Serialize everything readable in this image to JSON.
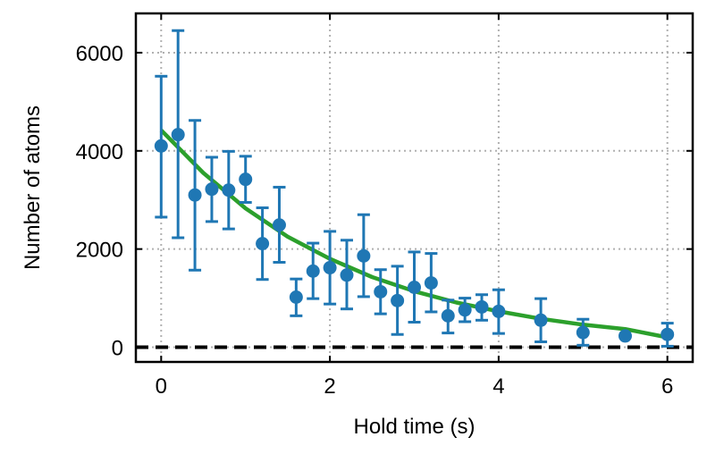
{
  "chart_data": {
    "type": "scatter",
    "title": "",
    "xlabel": "Hold time (s)",
    "ylabel": "Number of atoms",
    "xlim": [
      -0.3,
      6.3
    ],
    "ylim": [
      -300,
      6800
    ],
    "xticks": [
      0,
      2,
      4,
      6
    ],
    "yticks": [
      0,
      2000,
      4000,
      6000
    ],
    "grid": true,
    "reference_line": {
      "y": 0,
      "style": "dashed",
      "color": "#000000"
    },
    "series": [
      {
        "kind": "errorbar",
        "color": "#1f77b4",
        "points": [
          {
            "x": 0.0,
            "y": 4100,
            "lo": 2650,
            "hi": 5520
          },
          {
            "x": 0.2,
            "y": 4330,
            "lo": 2230,
            "hi": 6450
          },
          {
            "x": 0.4,
            "y": 3100,
            "lo": 1570,
            "hi": 4620
          },
          {
            "x": 0.6,
            "y": 3220,
            "lo": 2560,
            "hi": 3870
          },
          {
            "x": 0.8,
            "y": 3200,
            "lo": 2410,
            "hi": 3990
          },
          {
            "x": 1.0,
            "y": 3420,
            "lo": 2950,
            "hi": 3890
          },
          {
            "x": 1.2,
            "y": 2110,
            "lo": 1380,
            "hi": 2840
          },
          {
            "x": 1.4,
            "y": 2490,
            "lo": 1730,
            "hi": 3260
          },
          {
            "x": 1.6,
            "y": 1020,
            "lo": 640,
            "hi": 1390
          },
          {
            "x": 1.8,
            "y": 1550,
            "lo": 990,
            "hi": 2120
          },
          {
            "x": 2.0,
            "y": 1620,
            "lo": 880,
            "hi": 2360
          },
          {
            "x": 2.2,
            "y": 1470,
            "lo": 780,
            "hi": 2180
          },
          {
            "x": 2.4,
            "y": 1860,
            "lo": 1030,
            "hi": 2700
          },
          {
            "x": 2.6,
            "y": 1130,
            "lo": 680,
            "hi": 1580
          },
          {
            "x": 2.8,
            "y": 950,
            "lo": 260,
            "hi": 1650
          },
          {
            "x": 3.0,
            "y": 1220,
            "lo": 510,
            "hi": 1940
          },
          {
            "x": 3.2,
            "y": 1310,
            "lo": 720,
            "hi": 1910
          },
          {
            "x": 3.4,
            "y": 640,
            "lo": 290,
            "hi": 960
          },
          {
            "x": 3.6,
            "y": 760,
            "lo": 520,
            "hi": 1000
          },
          {
            "x": 3.8,
            "y": 820,
            "lo": 550,
            "hi": 1070
          },
          {
            "x": 4.0,
            "y": 730,
            "lo": 280,
            "hi": 1170
          },
          {
            "x": 4.5,
            "y": 550,
            "lo": 110,
            "hi": 990
          },
          {
            "x": 5.0,
            "y": 300,
            "lo": 40,
            "hi": 570
          },
          {
            "x": 5.5,
            "y": 230,
            "lo": 230,
            "hi": 240
          },
          {
            "x": 6.0,
            "y": 260,
            "lo": 20,
            "hi": 490
          }
        ]
      },
      {
        "kind": "fit",
        "color": "#2ca02c",
        "x": [
          0,
          0.5,
          1,
          1.5,
          2,
          2.5,
          3,
          3.5,
          4,
          4.5,
          5,
          5.5,
          6
        ],
        "values": [
          4420,
          3550,
          2830,
          2250,
          1800,
          1430,
          1140,
          910,
          730,
          580,
          460,
          370,
          200
        ]
      }
    ]
  }
}
